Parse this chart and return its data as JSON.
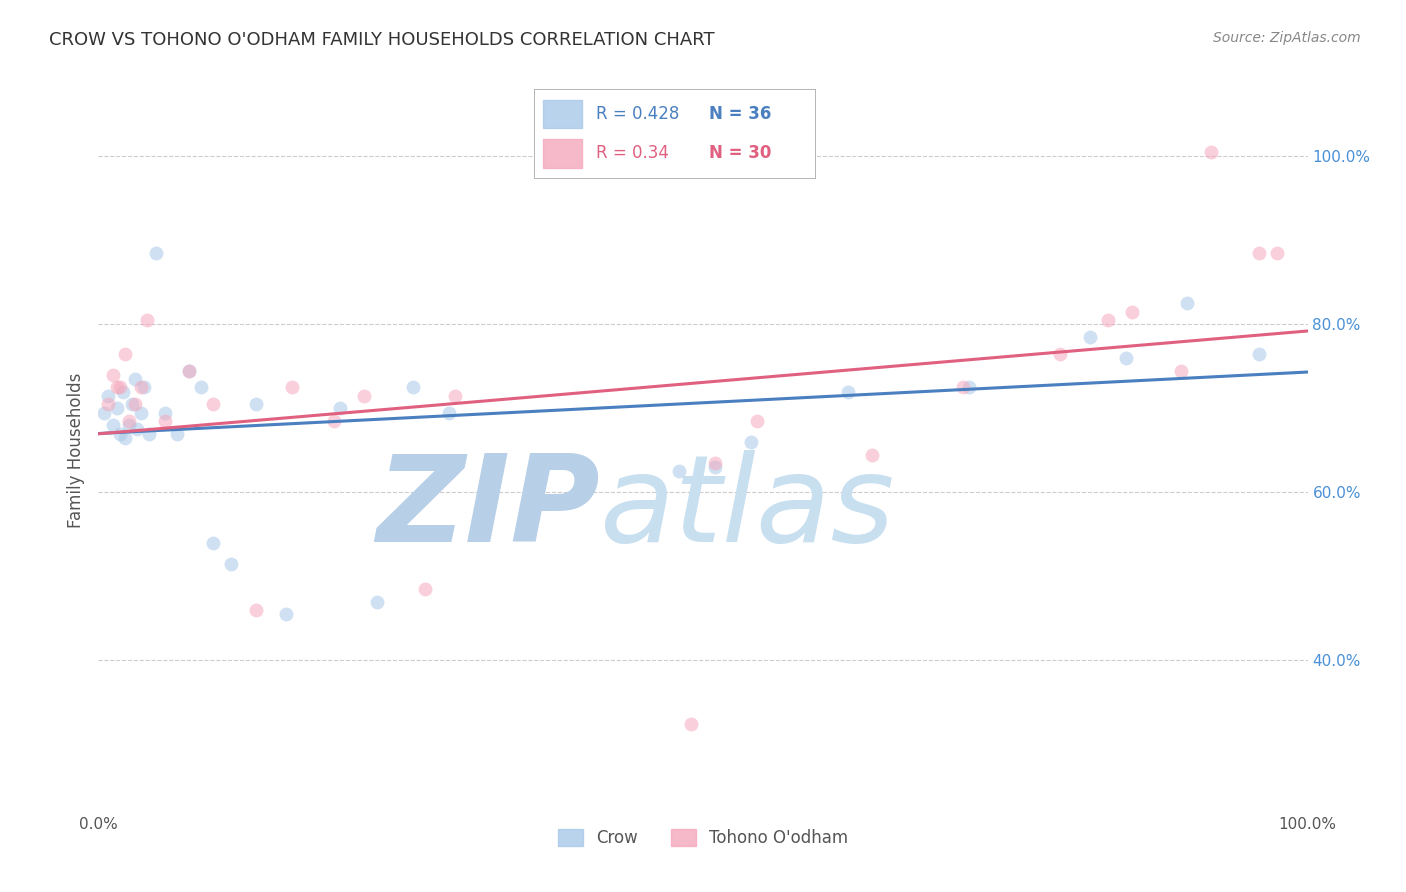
{
  "title": "CROW VS TOHONO O'ODHAM FAMILY HOUSEHOLDS CORRELATION CHART",
  "source": "Source: ZipAtlas.com",
  "ylabel": "Family Households",
  "xlim": [
    0.0,
    1.0
  ],
  "ylim": [
    0.22,
    1.08
  ],
  "crow_R": 0.428,
  "crow_N": 36,
  "tohono_R": 0.34,
  "tohono_N": 30,
  "crow_color": "#a8c8e8",
  "tohono_color": "#f4a8bc",
  "crow_line_color": "#4a7fc0",
  "tohono_line_color": "#e06080",
  "background_color": "#ffffff",
  "grid_color": "#cccccc",
  "crow_x": [
    0.005,
    0.008,
    0.012,
    0.015,
    0.018,
    0.02,
    0.022,
    0.025,
    0.028,
    0.03,
    0.032,
    0.035,
    0.038,
    0.042,
    0.048,
    0.055,
    0.065,
    0.075,
    0.085,
    0.095,
    0.11,
    0.13,
    0.155,
    0.2,
    0.23,
    0.26,
    0.29,
    0.48,
    0.51,
    0.54,
    0.62,
    0.72,
    0.82,
    0.85,
    0.9,
    0.96
  ],
  "crow_y": [
    0.695,
    0.715,
    0.68,
    0.7,
    0.67,
    0.72,
    0.665,
    0.68,
    0.705,
    0.735,
    0.675,
    0.695,
    0.725,
    0.67,
    0.885,
    0.695,
    0.67,
    0.745,
    0.725,
    0.54,
    0.515,
    0.705,
    0.455,
    0.7,
    0.47,
    0.725,
    0.695,
    0.625,
    0.63,
    0.66,
    0.72,
    0.725,
    0.785,
    0.76,
    0.825,
    0.765
  ],
  "tohono_x": [
    0.008,
    0.012,
    0.015,
    0.018,
    0.022,
    0.025,
    0.03,
    0.035,
    0.04,
    0.055,
    0.075,
    0.095,
    0.13,
    0.16,
    0.195,
    0.22,
    0.27,
    0.295,
    0.49,
    0.51,
    0.545,
    0.64,
    0.715,
    0.795,
    0.835,
    0.855,
    0.895,
    0.92,
    0.96,
    0.975
  ],
  "tohono_y": [
    0.705,
    0.74,
    0.725,
    0.725,
    0.765,
    0.685,
    0.705,
    0.725,
    0.805,
    0.685,
    0.745,
    0.705,
    0.46,
    0.725,
    0.685,
    0.715,
    0.485,
    0.715,
    0.325,
    0.635,
    0.685,
    0.645,
    0.725,
    0.765,
    0.805,
    0.815,
    0.745,
    1.005,
    0.885,
    0.885
  ],
  "yticks": [
    0.4,
    0.6,
    0.8,
    1.0
  ],
  "ytick_labels": [
    "40.0%",
    "60.0%",
    "80.0%",
    "100.0%"
  ],
  "xticks": [
    0.0,
    1.0
  ],
  "xtick_labels": [
    "0.0%",
    "100.0%"
  ],
  "watermark_zip": "ZIP",
  "watermark_atlas": "atlas",
  "watermark_color": "#c8dff0",
  "marker_size": 100,
  "marker_alpha": 0.55,
  "line_width": 2.2
}
